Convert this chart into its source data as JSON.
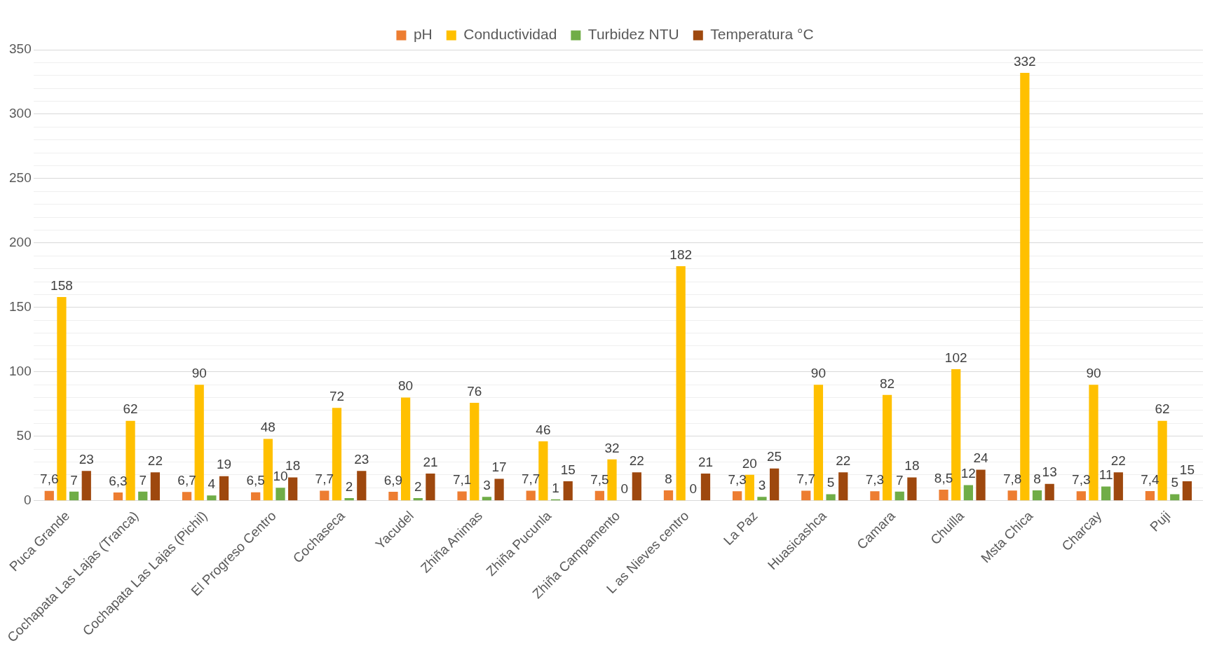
{
  "chart_data": {
    "type": "bar",
    "categories": [
      "Puca Grande",
      "Cochapata Las Lajas (Tranca)",
      "Cochapata Las Lajas (Pichil)",
      "El Progreso Centro",
      "Cochaseca",
      "Yacudel",
      "Zhiña Animas",
      "Zhiña Pucunla",
      "Zhiña Campamento",
      "L as Nieves centro",
      "La Paz",
      "Huasicashca",
      "Camara",
      "Chuilla",
      "Msta Chica",
      "Charcay",
      "Puji"
    ],
    "series": [
      {
        "name": "pH",
        "color": "#ed7d31",
        "values": [
          7.6,
          6.3,
          6.7,
          6.5,
          7.7,
          6.9,
          7.1,
          7.7,
          7.5,
          8,
          7.3,
          7.7,
          7.3,
          8.5,
          7.8,
          7.3,
          7.4
        ],
        "value_labels": [
          "7,6",
          "6,3",
          "6,7",
          "6,5",
          "7,7",
          "6,9",
          "7,1",
          "7,7",
          "7,5",
          "8",
          "7,3",
          "7,7",
          "7,3",
          "8,5",
          "7,8",
          "7,3",
          "7,4"
        ]
      },
      {
        "name": "Conductividad",
        "color": "#ffc000",
        "values": [
          158,
          62,
          90,
          48,
          72,
          80,
          76,
          46,
          32,
          182,
          20,
          90,
          82,
          102,
          332,
          90,
          62
        ],
        "value_labels": [
          "158",
          "62",
          "90",
          "48",
          "72",
          "80",
          "76",
          "46",
          "32",
          "182",
          "20",
          "90",
          "82",
          "102",
          "332",
          "90",
          "62"
        ]
      },
      {
        "name": "Turbidez NTU",
        "color": "#70ad47",
        "values": [
          7,
          7,
          4,
          10,
          2,
          2,
          3,
          1,
          0,
          0,
          3,
          5,
          7,
          12,
          8,
          11,
          5
        ],
        "value_labels": [
          "7",
          "7",
          "4",
          "10",
          "2",
          "2",
          "3",
          "1",
          "0",
          "0",
          "3",
          "5",
          "7",
          "12",
          "8",
          "11",
          "5"
        ]
      },
      {
        "name": "Temperatura °C",
        "color": "#9e480e",
        "values": [
          23,
          22,
          19,
          18,
          23,
          21,
          17,
          15,
          22,
          21,
          25,
          22,
          18,
          24,
          13,
          22,
          15
        ],
        "value_labels": [
          "23",
          "22",
          "19",
          "18",
          "23",
          "21",
          "17",
          "15",
          "22",
          "21",
          "25",
          "22",
          "18",
          "24",
          "13",
          "22",
          "15"
        ]
      }
    ],
    "ylim": [
      0,
      350
    ],
    "yticks": [
      0,
      {
        "value": 10,
        "label": null
      },
      {
        "value": 20,
        "label": null
      },
      {
        "value": 30,
        "label": null
      },
      {
        "value": 40,
        "label": null
      },
      50,
      {
        "value": 60,
        "label": null
      },
      {
        "value": 70,
        "label": null
      },
      {
        "value": 80,
        "label": null
      },
      {
        "value": 90,
        "label": null
      },
      100,
      {
        "value": 110,
        "label": null
      },
      {
        "value": 120,
        "label": null
      },
      {
        "value": 130,
        "label": null
      },
      {
        "value": 140,
        "label": null
      },
      150,
      {
        "value": 160,
        "label": null
      },
      {
        "value": 170,
        "label": null
      },
      {
        "value": 180,
        "label": null
      },
      {
        "value": 190,
        "label": null
      },
      200,
      {
        "value": 210,
        "label": null
      },
      {
        "value": 220,
        "label": null
      },
      {
        "value": 230,
        "label": null
      },
      {
        "value": 240,
        "label": null
      },
      250,
      {
        "value": 260,
        "label": null
      },
      {
        "value": 270,
        "label": null
      },
      {
        "value": 280,
        "label": null
      },
      {
        "value": 290,
        "label": null
      },
      300,
      {
        "value": 310,
        "label": null
      },
      {
        "value": 320,
        "label": null
      },
      {
        "value": 330,
        "label": null
      },
      {
        "value": 340,
        "label": null
      },
      350
    ],
    "grid": "y",
    "legend": "top"
  }
}
